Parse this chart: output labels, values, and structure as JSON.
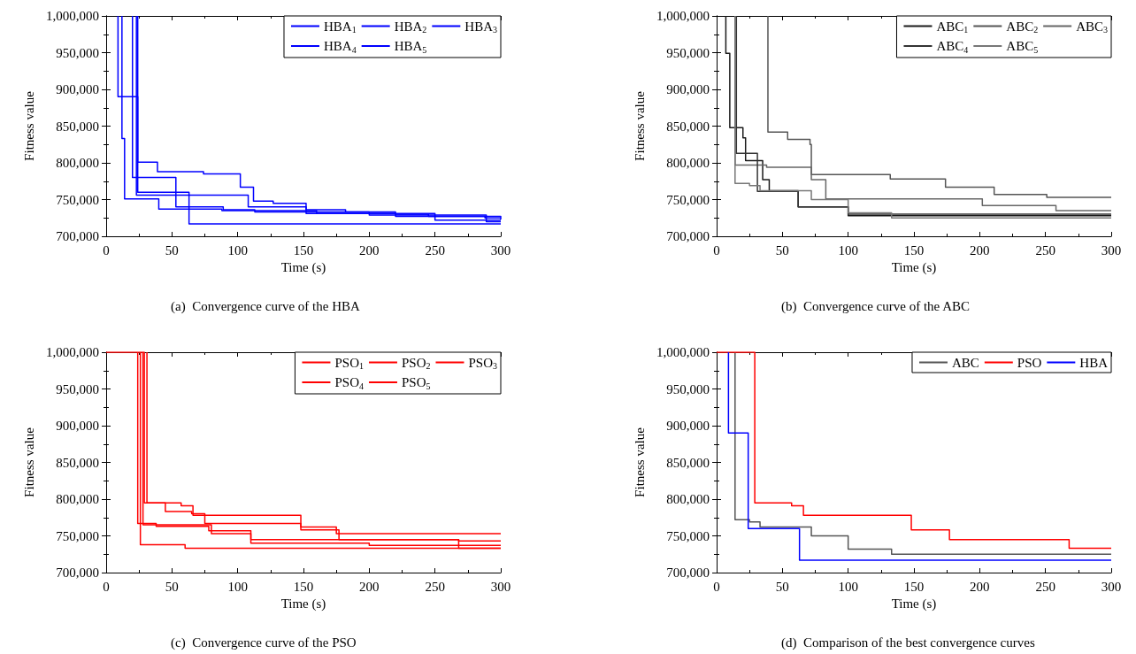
{
  "chart_data": [
    {
      "type": "step",
      "xlabel": "Time (s)",
      "ylabel": "Fitness value",
      "xlim": [
        0,
        300
      ],
      "ylim": [
        700000,
        1000000
      ],
      "xticks": [
        0,
        50,
        100,
        150,
        200,
        250,
        300
      ],
      "yticks": [
        {
          "value": 700000,
          "label": "700,000"
        },
        {
          "value": 750000,
          "label": "750,000"
        },
        {
          "value": 800000,
          "label": "800,000"
        },
        {
          "value": 850000,
          "label": "850,000"
        },
        {
          "value": 900000,
          "label": "900,000"
        },
        {
          "value": 950000,
          "label": "950,000"
        },
        {
          "value": 1000000,
          "label": "1,000,000"
        }
      ],
      "grid": false,
      "legend": "top right",
      "marker": "none",
      "line_style": "solid",
      "annotations": [
        "(a)  Convergence curve of the HBA"
      ],
      "series": [
        {
          "name": "HBA$_{1}$",
          "color": "#0000ff",
          "x": [
            9,
            9,
            24,
            63,
            300
          ],
          "values": [
            1000000,
            890000,
            760000,
            717000,
            717000
          ]
        },
        {
          "name": "HBA$_{2}$",
          "color": "#0000ff",
          "x": [
            12,
            12,
            14,
            40,
            88,
            160,
            250,
            300
          ],
          "values": [
            1000000,
            833000,
            751000,
            737000,
            735000,
            731000,
            722000,
            722000
          ]
        },
        {
          "name": "HBA$_{3}$",
          "color": "#0000ff",
          "x": [
            24,
            24,
            39,
            74,
            102,
            112,
            127,
            152,
            182,
            220,
            245,
            288,
            300
          ],
          "values": [
            1000000,
            801000,
            788000,
            785000,
            767000,
            748000,
            745000,
            736000,
            733000,
            730000,
            727000,
            725000,
            725000
          ]
        },
        {
          "name": "HBA$_{4}$",
          "color": "#0000ff",
          "x": [
            20,
            20,
            53,
            89,
            113,
            200,
            289,
            300
          ],
          "values": [
            1000000,
            780000,
            740000,
            736000,
            733000,
            729000,
            720000,
            720000
          ]
        },
        {
          "name": "HBA$_{5}$",
          "color": "#0000ff",
          "x": [
            23,
            23,
            108,
            152,
            220,
            300
          ],
          "values": [
            1000000,
            756000,
            740000,
            731000,
            727000,
            723000
          ]
        }
      ]
    },
    {
      "type": "step",
      "xlabel": "Time (s)",
      "ylabel": "Fitness value",
      "xlim": [
        0,
        300
      ],
      "ylim": [
        700000,
        1000000
      ],
      "xticks": [
        0,
        50,
        100,
        150,
        200,
        250,
        300
      ],
      "yticks": [
        {
          "value": 700000,
          "label": "700,000"
        },
        {
          "value": 750000,
          "label": "750,000"
        },
        {
          "value": 800000,
          "label": "800,000"
        },
        {
          "value": 850000,
          "label": "850,000"
        },
        {
          "value": 900000,
          "label": "900,000"
        },
        {
          "value": 950000,
          "label": "950,000"
        },
        {
          "value": 1000000,
          "label": "1,000,000"
        }
      ],
      "grid": false,
      "legend": "top right",
      "marker": "none",
      "line_style": "solid",
      "annotations": [
        "(b)  Convergence curve of the ABC"
      ],
      "series": [
        {
          "name": "ABC$_{1}$",
          "color": "#1a1a1a",
          "x": [
            7,
            7,
            10,
            20,
            22,
            35,
            40,
            62,
            100,
            300
          ],
          "values": [
            1000000,
            949000,
            848000,
            834000,
            803000,
            777000,
            762000,
            740000,
            728000,
            728000
          ]
        },
        {
          "name": "ABC$_{2}$",
          "color": "#555555",
          "x": [
            39,
            39,
            54,
            71,
            72,
            132,
            174,
            211,
            251,
            300
          ],
          "values": [
            1000000,
            842000,
            832000,
            825000,
            784000,
            778000,
            767000,
            757000,
            753000,
            753000
          ]
        },
        {
          "name": "ABC$_{3}$",
          "color": "#666666",
          "x": [
            14,
            14,
            38,
            72,
            83,
            202,
            258,
            300
          ],
          "values": [
            1000000,
            797000,
            794000,
            777000,
            751000,
            742000,
            735000,
            735000
          ]
        },
        {
          "name": "ABC$_{4}$",
          "color": "#333333",
          "x": [
            15,
            15,
            31,
            62,
            100,
            300
          ],
          "values": [
            1000000,
            813000,
            761000,
            740000,
            730000,
            730000
          ]
        },
        {
          "name": "ABC$_{5}$",
          "color": "#777777",
          "x": [
            14,
            14,
            25,
            33,
            72,
            100,
            133,
            300
          ],
          "values": [
            1000000,
            772000,
            769000,
            762000,
            750000,
            732000,
            725000,
            725000
          ]
        }
      ]
    },
    {
      "type": "step",
      "xlabel": "Time (s)",
      "ylabel": "Fitness value",
      "xlim": [
        0,
        300
      ],
      "ylim": [
        700000,
        1000000
      ],
      "xticks": [
        0,
        50,
        100,
        150,
        200,
        250,
        300
      ],
      "yticks": [
        {
          "value": 700000,
          "label": "700,000"
        },
        {
          "value": 750000,
          "label": "750,000"
        },
        {
          "value": 800000,
          "label": "800,000"
        },
        {
          "value": 850000,
          "label": "850,000"
        },
        {
          "value": 900000,
          "label": "900,000"
        },
        {
          "value": 950000,
          "label": "950,000"
        },
        {
          "value": 1000000,
          "label": "1,000,000"
        }
      ],
      "grid": false,
      "legend": "top right",
      "marker": "none",
      "line_style": "solid",
      "annotations": [
        "(c)  Convergence curve of the PSO"
      ],
      "series": [
        {
          "name": "PSO$_{1}$",
          "color": "#ff0000",
          "x": [
            0,
            29,
            29,
            57,
            66,
            148,
            177,
            268,
            300
          ],
          "values": [
            1000000,
            1000000,
            795000,
            791000,
            778000,
            758000,
            745000,
            733000,
            733000
          ]
        },
        {
          "name": "PSO$_{2}$",
          "color": "#ff0000",
          "x": [
            31,
            31,
            45,
            65,
            75,
            148,
            175,
            300
          ],
          "values": [
            1000000,
            795000,
            783000,
            780000,
            767000,
            762000,
            753000,
            753000
          ]
        },
        {
          "name": "PSO$_{3}$",
          "color": "#ff0000",
          "x": [
            24,
            24,
            38,
            78,
            110,
            268,
            300
          ],
          "values": [
            1000000,
            767000,
            763000,
            757000,
            745000,
            743000,
            743000
          ]
        },
        {
          "name": "PSO$_{4}$",
          "color": "#ff0000",
          "x": [
            26,
            26,
            60,
            300
          ],
          "values": [
            1000000,
            738000,
            733000,
            733000
          ]
        },
        {
          "name": "PSO$_{5}$",
          "color": "#ff0000",
          "x": [
            28,
            28,
            80,
            110,
            200,
            300
          ],
          "values": [
            1000000,
            765000,
            753000,
            740000,
            737000,
            737000
          ]
        }
      ]
    },
    {
      "type": "step",
      "xlabel": "Time (s)",
      "ylabel": "Fitness value",
      "xlim": [
        0,
        300
      ],
      "ylim": [
        700000,
        1000000
      ],
      "xticks": [
        0,
        50,
        100,
        150,
        200,
        250,
        300
      ],
      "yticks": [
        {
          "value": 700000,
          "label": "700,000"
        },
        {
          "value": 750000,
          "label": "750,000"
        },
        {
          "value": 800000,
          "label": "800,000"
        },
        {
          "value": 850000,
          "label": "850,000"
        },
        {
          "value": 900000,
          "label": "900,000"
        },
        {
          "value": 950000,
          "label": "950,000"
        },
        {
          "value": 1000000,
          "label": "1,000,000"
        }
      ],
      "grid": false,
      "legend": "top right",
      "marker": "none",
      "line_style": "solid",
      "annotations": [
        "(d)  Comparison of the best convergence curves"
      ],
      "series": [
        {
          "name": "ABC",
          "color": "#555555",
          "x": [
            14,
            14,
            25,
            33,
            72,
            100,
            133,
            300
          ],
          "values": [
            1000000,
            772000,
            769000,
            762000,
            750000,
            732000,
            725000,
            725000
          ]
        },
        {
          "name": "PSO",
          "color": "#ff0000",
          "x": [
            0,
            29,
            29,
            57,
            66,
            148,
            177,
            268,
            300
          ],
          "values": [
            1000000,
            1000000,
            795000,
            791000,
            778000,
            758000,
            745000,
            733000,
            733000
          ]
        },
        {
          "name": "HBA",
          "color": "#0000ff",
          "x": [
            9,
            9,
            24,
            63,
            300
          ],
          "values": [
            1000000,
            890000,
            760000,
            717000,
            717000
          ]
        }
      ]
    }
  ]
}
